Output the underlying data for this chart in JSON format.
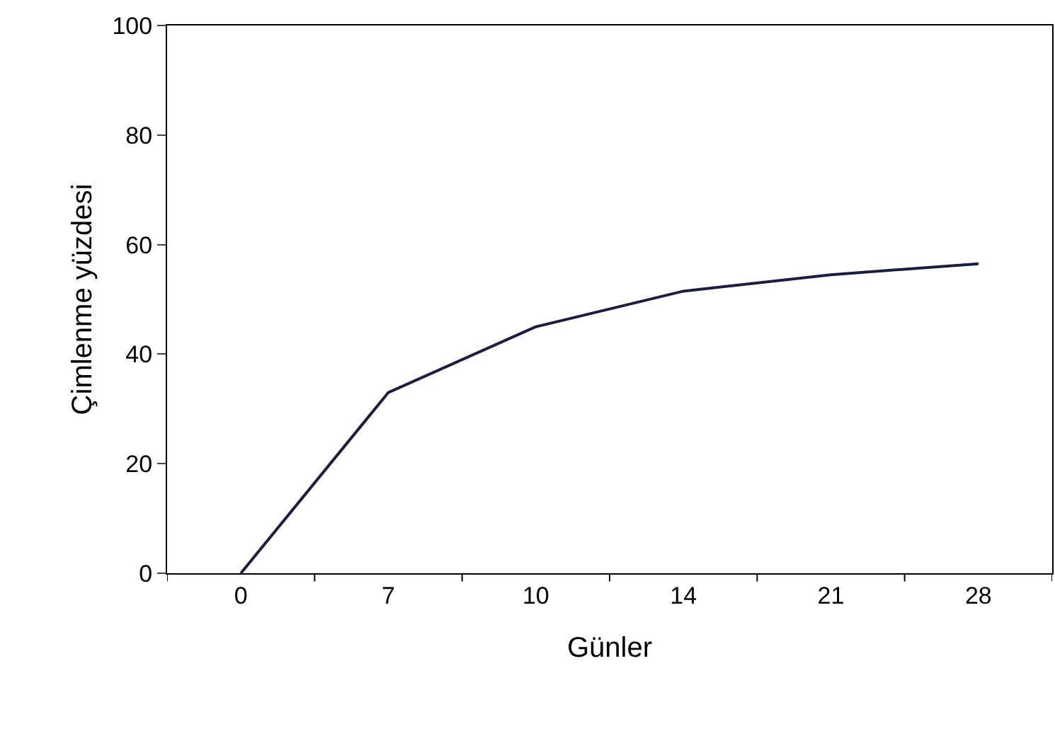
{
  "chart_data": {
    "type": "line",
    "xlabel": "Günler",
    "ylabel": "Çimlenme yüzdesi",
    "categories": [
      "0",
      "7",
      "10",
      "14",
      "21",
      "28"
    ],
    "series": [
      {
        "color": "#1c1c40",
        "values": [
          0,
          33,
          45,
          51.5,
          54.5,
          56.5
        ]
      }
    ],
    "ylim": [
      0,
      100
    ],
    "yticks": [
      0,
      20,
      40,
      60,
      80,
      100
    ],
    "marker": "none",
    "line_style": "solid"
  }
}
